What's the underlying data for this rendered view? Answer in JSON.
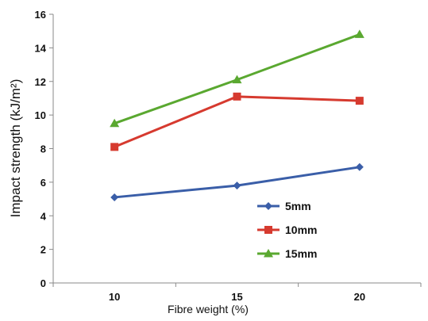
{
  "chart_data": {
    "type": "line",
    "xlabel": "Fibre weight (%)",
    "ylabel": "Impact strength (kJ/m²)",
    "x": [
      10,
      15,
      20
    ],
    "xticks": [
      10,
      15,
      20
    ],
    "ylim": [
      0,
      16
    ],
    "yticks": [
      0,
      2,
      4,
      6,
      8,
      10,
      12,
      14,
      16
    ],
    "grid": false,
    "legend_position": "lower-right",
    "series": [
      {
        "name": "5mm",
        "values": [
          5.1,
          5.8,
          6.9
        ],
        "color": "#3a5ea8",
        "marker": "diamond"
      },
      {
        "name": "10mm",
        "values": [
          8.1,
          11.1,
          10.85
        ],
        "color": "#d63a2f",
        "marker": "square"
      },
      {
        "name": "15mm",
        "values": [
          9.5,
          12.1,
          14.8
        ],
        "color": "#5aa830",
        "marker": "triangle"
      }
    ]
  }
}
